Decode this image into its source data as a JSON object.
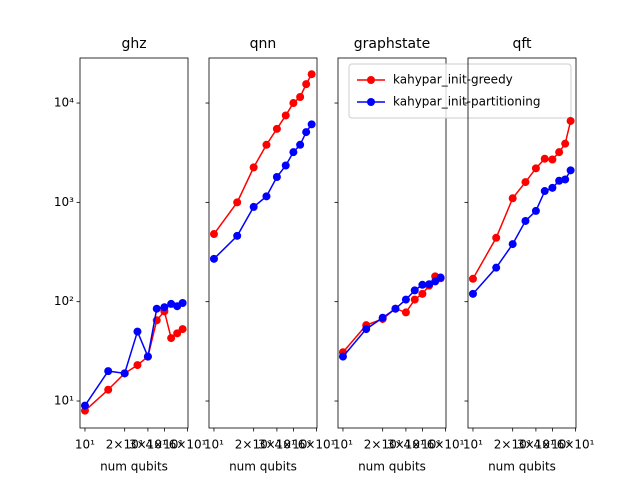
{
  "chart_data": [
    {
      "type": "line",
      "title": "ghz",
      "x_label": "num qubits",
      "x": [
        10,
        15,
        20,
        25,
        30,
        35,
        40,
        45,
        50,
        55
      ],
      "xscale": "log",
      "yscale": "log",
      "xlim": [
        9.17,
        60.4
      ],
      "ylim": [
        5.35,
        28400
      ],
      "xticks": [
        {
          "value": 10,
          "label": "10¹"
        },
        {
          "value": 20,
          "label": "2×10¹"
        },
        {
          "value": 30,
          "label": "3×10¹"
        },
        {
          "value": 40,
          "label": "4×10¹"
        },
        {
          "value": 60,
          "label": "6×10¹"
        }
      ],
      "yticks": [
        {
          "value": 10,
          "label": "10¹"
        },
        {
          "value": 100,
          "label": "10²"
        },
        {
          "value": 1000,
          "label": "10³"
        },
        {
          "value": 10000,
          "label": "10⁴"
        }
      ],
      "series": [
        {
          "color": "#ff0000",
          "values": [
            8,
            13,
            19,
            23,
            28,
            65,
            80,
            43,
            48,
            53
          ]
        },
        {
          "color": "#0000ff",
          "values": [
            9,
            20,
            19,
            50,
            28,
            85,
            88,
            95,
            90,
            97
          ]
        }
      ]
    },
    {
      "type": "line",
      "title": "qnn",
      "x_label": "num qubits",
      "x": [
        10,
        15,
        20,
        25,
        30,
        35,
        40,
        45,
        50,
        55
      ],
      "xscale": "log",
      "yscale": "log",
      "xlim": [
        9.17,
        60.4
      ],
      "ylim": [
        5.35,
        28400
      ],
      "xticks": [
        {
          "value": 10,
          "label": "10¹"
        },
        {
          "value": 20,
          "label": "2×10¹"
        },
        {
          "value": 30,
          "label": "3×10¹"
        },
        {
          "value": 40,
          "label": "4×10¹"
        },
        {
          "value": 60,
          "label": "6×10¹"
        }
      ],
      "series": [
        {
          "color": "#ff0000",
          "values": [
            480,
            1000,
            2250,
            3800,
            5500,
            7500,
            10000,
            11500,
            15500,
            19500
          ]
        },
        {
          "color": "#0000ff",
          "values": [
            270,
            460,
            900,
            1150,
            1800,
            2350,
            3200,
            3800,
            5100,
            6100
          ]
        }
      ]
    },
    {
      "type": "line",
      "title": "graphstate",
      "x_label": "num qubits",
      "x": [
        10,
        15,
        20,
        25,
        30,
        35,
        40,
        45,
        50,
        55
      ],
      "xscale": "log",
      "yscale": "log",
      "xlim": [
        9.17,
        60.4
      ],
      "ylim": [
        5.35,
        28400
      ],
      "legend": "upper right",
      "xticks": [
        {
          "value": 10,
          "label": "10¹"
        },
        {
          "value": 20,
          "label": "2×10¹"
        },
        {
          "value": 30,
          "label": "3×10¹"
        },
        {
          "value": 40,
          "label": "4×10¹"
        },
        {
          "value": 60,
          "label": "6×10¹"
        }
      ],
      "series": [
        {
          "name": "kahypar_init-greedy",
          "color": "#ff0000",
          "values": [
            31,
            58,
            67,
            85,
            78,
            105,
            120,
            145,
            180,
            172
          ]
        },
        {
          "name": "kahypar_init-partitioning",
          "color": "#0000ff",
          "values": [
            28,
            53,
            69,
            85,
            105,
            130,
            148,
            150,
            160,
            175
          ]
        }
      ]
    },
    {
      "type": "line",
      "title": "qft",
      "x_label": "num qubits",
      "x": [
        10,
        15,
        20,
        25,
        30,
        35,
        40,
        45,
        50,
        55
      ],
      "xscale": "log",
      "yscale": "log",
      "xlim": [
        9.17,
        60.4
      ],
      "ylim": [
        5.35,
        28400
      ],
      "xticks": [
        {
          "value": 10,
          "label": "10¹"
        },
        {
          "value": 20,
          "label": "2×10¹"
        },
        {
          "value": 30,
          "label": "3×10¹"
        },
        {
          "value": 40,
          "label": "4×10¹"
        },
        {
          "value": 60,
          "label": "6×10¹"
        }
      ],
      "series": [
        {
          "color": "#ff0000",
          "values": [
            170,
            440,
            1100,
            1600,
            2200,
            2750,
            2700,
            3200,
            3900,
            6600
          ]
        },
        {
          "color": "#0000ff",
          "values": [
            120,
            220,
            380,
            650,
            820,
            1300,
            1400,
            1650,
            1700,
            2100
          ]
        }
      ]
    }
  ]
}
